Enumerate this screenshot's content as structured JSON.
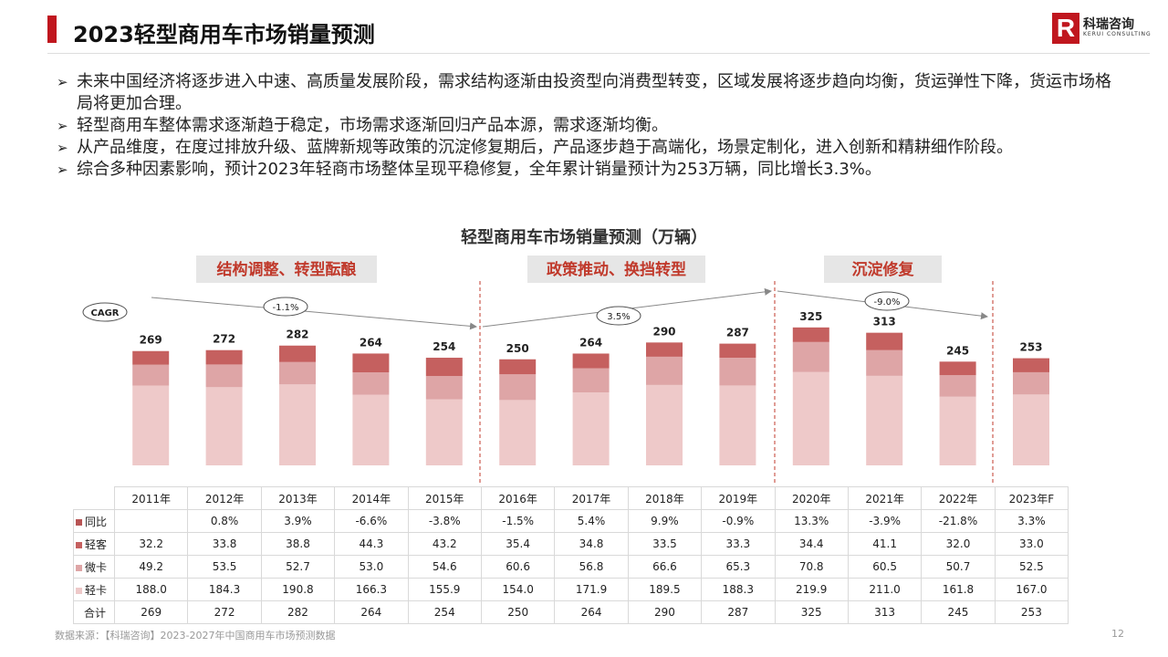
{
  "header": {
    "title": "2023轻型商用车市场销量预测",
    "logo": {
      "name": "科瑞咨询",
      "en": "KERUI CONSULTING"
    }
  },
  "bullets": [
    "未来中国经济将逐步进入中速、高质量发展阶段，需求结构逐渐由投资型向消费型转变，区域发展将逐步趋向均衡，货运弹性下降，货运市场格局将更加合理。",
    "轻型商用车整体需求逐渐趋于稳定，市场需求逐渐回归产品本源，需求逐渐均衡。",
    "从产品维度，在度过排放升级、蓝牌新规等政策的沉淀修复期后，产品逐步趋于高端化，场景定制化，进入创新和精耕细作阶段。",
    "综合多种因素影响，预计2023年轻商市场整体呈现平稳修复，全年累计销量预计为253万辆，同比增长3.3%。"
  ],
  "chart_data": {
    "type": "bar",
    "stacked": true,
    "title": "轻型商用车市场销量预测（万辆）",
    "categories": [
      "2011年",
      "2012年",
      "2013年",
      "2014年",
      "2015年",
      "2016年",
      "2017年",
      "2018年",
      "2019年",
      "2020年",
      "2021年",
      "2022年",
      "2023年F"
    ],
    "series": [
      {
        "name": "轻卡",
        "color": "#eec9c9",
        "values": [
          188.0,
          184.3,
          190.8,
          166.3,
          155.9,
          154.0,
          171.9,
          189.5,
          188.3,
          219.9,
          211.0,
          161.8,
          167.0
        ]
      },
      {
        "name": "微卡",
        "color": "#dea5a6",
        "values": [
          49.2,
          53.5,
          52.7,
          53.0,
          54.6,
          60.6,
          56.8,
          66.6,
          65.3,
          70.8,
          60.5,
          50.7,
          52.5
        ]
      },
      {
        "name": "轻客",
        "color": "#c5605f",
        "values": [
          32.2,
          33.8,
          38.8,
          44.3,
          43.2,
          35.4,
          34.8,
          33.5,
          33.3,
          34.4,
          41.1,
          32.0,
          33.0
        ]
      }
    ],
    "totals": [
      269,
      272,
      282,
      264,
      254,
      250,
      264,
      290,
      287,
      325,
      313,
      245,
      253
    ],
    "yoy": {
      "name": "同比",
      "color": "#b85454",
      "values": [
        "",
        "0.8%",
        "3.9%",
        "-6.6%",
        "-3.8%",
        "-1.5%",
        "5.4%",
        "9.9%",
        "-0.9%",
        "13.3%",
        "-3.9%",
        "-21.8%",
        "3.3%"
      ]
    },
    "total_label": "合计",
    "cagr_label": "CAGR",
    "phases": [
      {
        "label": "结构调整、转型酝酿",
        "cagr": "-1.1%"
      },
      {
        "label": "政策推动、换挡转型",
        "cagr": "3.5%"
      },
      {
        "label": "沉淀修复",
        "cagr": "-9.0%"
      }
    ]
  },
  "footer": {
    "source": "数据来源：【科瑞咨询】2023-2027年中国商用车市场预测数据",
    "page": "12"
  }
}
